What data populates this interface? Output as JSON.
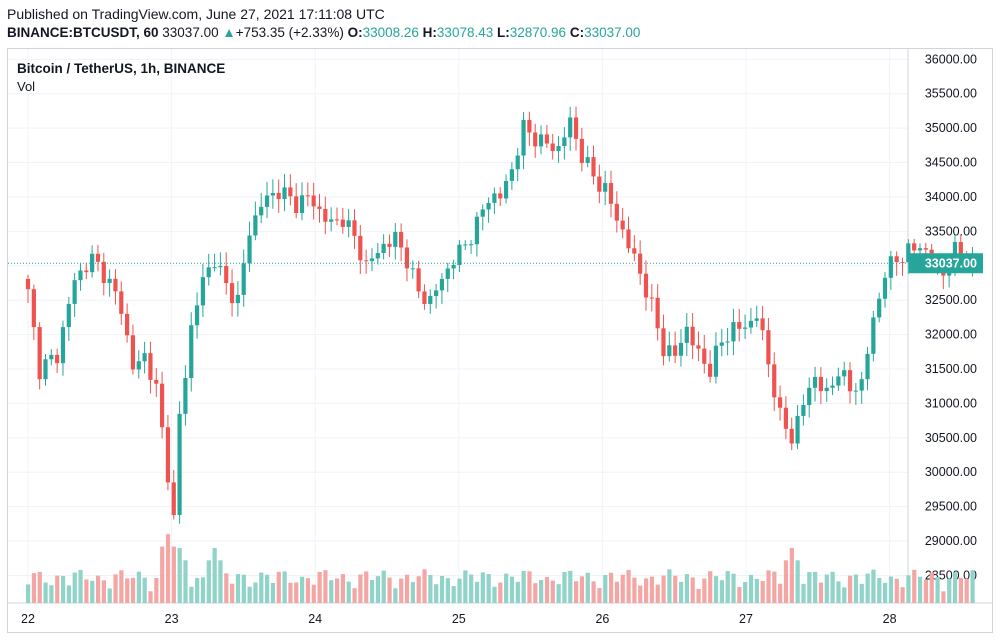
{
  "header": {
    "published": "Published on TradingView.com, June 27, 2021 17:11:08 UTC",
    "symbol": "BINANCE:BTCUSDT, 60",
    "last": "33037.00",
    "change_arrow": "▲",
    "change": "+753.35 (+2.33%)",
    "o_label": "O:",
    "o_value": "33008.26",
    "h_label": "H:",
    "h_value": "33078.43",
    "l_label": "L:",
    "l_value": "32870.96",
    "c_label": "C:",
    "c_value": "33037.00"
  },
  "legend": {
    "title": "Bitcoin / TetherUS, 1h, BINANCE",
    "volume": "Vol"
  },
  "colors": {
    "up": "#26a69a",
    "down": "#ef5350",
    "up_volume": "#8fd3c9",
    "down_volume": "#f4a6a4",
    "grid": "#f0f3fa",
    "border": "#d1d4dc"
  },
  "chart_data": {
    "type": "candlestick",
    "title": "Bitcoin / TetherUS, 1h, BINANCE",
    "x_ticks": [
      "22",
      "23",
      "24",
      "25",
      "26",
      "27",
      "28"
    ],
    "y_ticks": [
      "36000.00",
      "35500.00",
      "35000.00",
      "34500.00",
      "34000.00",
      "33500.00",
      "33000.00",
      "32500.00",
      "32000.00",
      "31500.00",
      "31000.00",
      "30500.00",
      "30000.00",
      "29500.00",
      "29000.00",
      "28500.00"
    ],
    "ylim": [
      28100,
      36150
    ],
    "last_price_label": "33037.00",
    "last_price": 33037,
    "grid": true,
    "approx_close_path": [
      [
        0,
        32600
      ],
      [
        2,
        31500
      ],
      [
        5,
        31700
      ],
      [
        8,
        32800
      ],
      [
        11,
        33100
      ],
      [
        13,
        32900
      ],
      [
        16,
        32400
      ],
      [
        18,
        31500
      ],
      [
        20,
        31700
      ],
      [
        22,
        31200
      ],
      [
        24,
        30000
      ],
      [
        25,
        29300
      ],
      [
        26,
        30800
      ],
      [
        28,
        32100
      ],
      [
        30,
        32800
      ],
      [
        32,
        33100
      ],
      [
        34,
        32700
      ],
      [
        36,
        32500
      ],
      [
        38,
        33500
      ],
      [
        40,
        33900
      ],
      [
        43,
        34100
      ],
      [
        46,
        33900
      ],
      [
        48,
        34000
      ],
      [
        50,
        33800
      ],
      [
        52,
        33600
      ],
      [
        54,
        33700
      ],
      [
        56,
        33400
      ],
      [
        58,
        33000
      ],
      [
        61,
        33300
      ],
      [
        63,
        33400
      ],
      [
        65,
        33100
      ],
      [
        67,
        32600
      ],
      [
        69,
        32500
      ],
      [
        71,
        32800
      ],
      [
        73,
        33100
      ],
      [
        75,
        33300
      ],
      [
        77,
        33600
      ],
      [
        79,
        34000
      ],
      [
        81,
        34000
      ],
      [
        83,
        34400
      ],
      [
        85,
        35000
      ],
      [
        88,
        34800
      ],
      [
        91,
        34700
      ],
      [
        93,
        35100
      ],
      [
        95,
        34600
      ],
      [
        97,
        34300
      ],
      [
        99,
        34100
      ],
      [
        101,
        33700
      ],
      [
        103,
        33300
      ],
      [
        105,
        32900
      ],
      [
        107,
        32400
      ],
      [
        109,
        31800
      ],
      [
        111,
        31700
      ],
      [
        113,
        32100
      ],
      [
        115,
        31700
      ],
      [
        117,
        31500
      ],
      [
        119,
        31900
      ],
      [
        121,
        32100
      ],
      [
        123,
        32100
      ],
      [
        125,
        32300
      ],
      [
        127,
        31600
      ],
      [
        129,
        30800
      ],
      [
        131,
        30500
      ],
      [
        133,
        31000
      ],
      [
        135,
        31400
      ],
      [
        137,
        31100
      ],
      [
        139,
        31500
      ],
      [
        141,
        31200
      ],
      [
        143,
        31300
      ],
      [
        145,
        32200
      ],
      [
        147,
        32900
      ],
      [
        149,
        33100
      ],
      [
        151,
        33200
      ],
      [
        153,
        33300
      ],
      [
        155,
        33100
      ],
      [
        157,
        32900
      ],
      [
        159,
        33200
      ],
      [
        161,
        33100
      ],
      [
        162,
        33037
      ]
    ],
    "volume": {
      "label": "Vol",
      "spikes": [
        [
          24,
          29100
        ],
        [
          26,
          28900
        ],
        [
          32,
          28900
        ],
        [
          131,
          28900
        ]
      ]
    }
  }
}
